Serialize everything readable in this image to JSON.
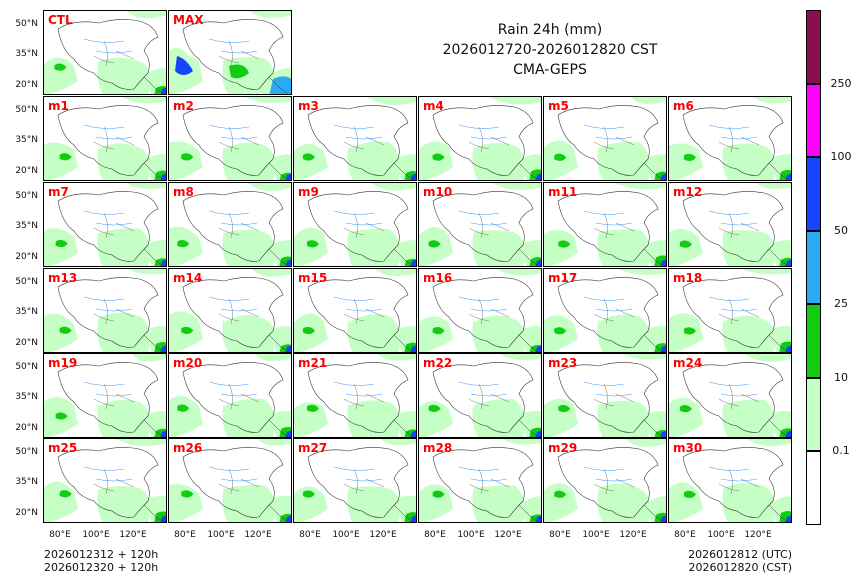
{
  "title": {
    "line1": "Rain 24h (mm)",
    "line2": "2026012720-2026012820 CST",
    "line3": "CMA-GEPS"
  },
  "footer": {
    "left1": "2026012312 + 120h",
    "left2": "2026012320 + 120h",
    "right1": "2026012812 (UTC)",
    "right2": "2026012820 (CST)"
  },
  "chart_data": {
    "type": "ensemble-map-panels",
    "variable": "Rain 24h (mm)",
    "panels_top": [
      "CTL",
      "MAX"
    ],
    "panels_members": [
      "m1",
      "m2",
      "m3",
      "m4",
      "m5",
      "m6",
      "m7",
      "m8",
      "m9",
      "m10",
      "m11",
      "m12",
      "m13",
      "m14",
      "m15",
      "m16",
      "m17",
      "m18",
      "m19",
      "m20",
      "m21",
      "m22",
      "m23",
      "m24",
      "m25",
      "m26",
      "m27",
      "m28",
      "m29",
      "m30"
    ],
    "lat_ticks": [
      "50°N",
      "35°N",
      "20°N"
    ],
    "lon_ticks": [
      "80°E",
      "100°E",
      "120°E"
    ],
    "colorbar": {
      "levels": [
        "0.1",
        "10",
        "25",
        "50",
        "100",
        "250"
      ],
      "colors": [
        "#ffffff",
        "#c6ffc6",
        "#11cc11",
        "#29aaf2",
        "#1545ff",
        "#ff00ff",
        "#8b0d52"
      ]
    }
  }
}
